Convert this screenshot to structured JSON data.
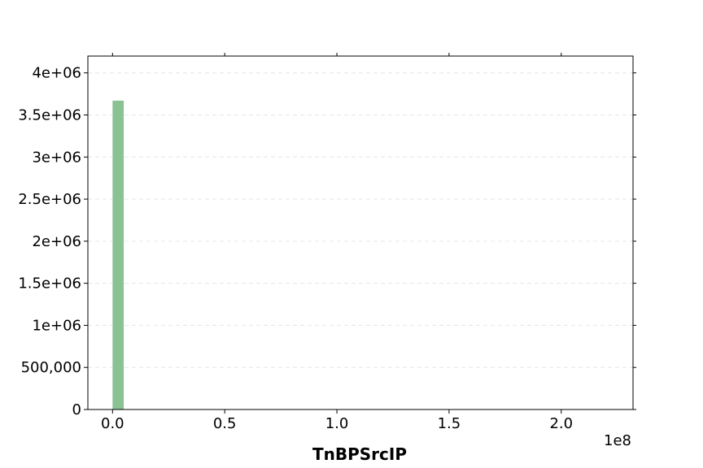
{
  "chart_data": {
    "type": "bar",
    "title": "",
    "xlabel": "TnBPSrcIP",
    "ylabel": "",
    "x_offset_label": "1e8",
    "x_tick_values": [
      0.0,
      0.5,
      1.0,
      1.5,
      2.0
    ],
    "x_tick_labels": [
      "0.0",
      "0.5",
      "1.0",
      "1.5",
      "2.0"
    ],
    "y_tick_values": [
      0,
      500000,
      1000000,
      1500000,
      2000000,
      2500000,
      3000000,
      3500000,
      4000000
    ],
    "y_tick_labels": [
      "0",
      "500,000",
      "1e+06",
      "1.5e+06",
      "2e+06",
      "2.5e+06",
      "3e+06",
      "3.5e+06",
      "4e+06"
    ],
    "xlim": [
      -0.11,
      2.32
    ],
    "ylim": [
      0,
      4200000
    ],
    "grid": "y-dashed",
    "bars": [
      {
        "x_start": 0.0,
        "x_end": 0.05,
        "value": 3670000
      }
    ],
    "bar_color": "#8bc294"
  }
}
